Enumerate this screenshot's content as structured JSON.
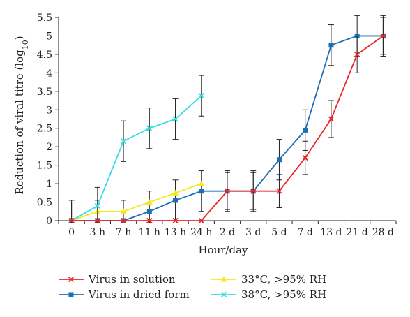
{
  "chart_data": {
    "type": "line",
    "xlabel": "Hour/day",
    "ylabel_main": "Reduction of viral titre (log",
    "ylabel_sub": "10",
    "ylabel_close": ")",
    "categories": [
      "0",
      "3 h",
      "7 h",
      "11 h",
      "13 h",
      "24 h",
      "2 d",
      "3 d",
      "5 d",
      "7 d",
      "13 d",
      "21 d",
      "28 d"
    ],
    "y_ticks": [
      "0",
      "0.5",
      "1",
      "1.5",
      "2",
      "2.5",
      "3",
      "3.5",
      "4",
      "4.5",
      "5",
      "5.5"
    ],
    "ylim": [
      0,
      5.5
    ],
    "grid": false,
    "legend_position": "bottom",
    "series": [
      {
        "name": "Virus in solution",
        "color": "#e8262b",
        "marker": "x",
        "values": [
          0,
          0,
          0,
          0,
          0,
          0,
          0.8,
          0.8,
          0.8,
          1.7,
          2.75,
          4.5,
          5.0
        ],
        "errors": [
          0,
          0,
          0,
          0,
          0,
          0,
          0.5,
          0.5,
          0.45,
          0.45,
          0.5,
          0.5,
          0.5
        ]
      },
      {
        "name": "Virus in dried form",
        "color": "#1c6fb4",
        "marker": "square",
        "values": [
          0,
          0,
          0,
          0.25,
          0.55,
          0.8,
          0.8,
          0.8,
          1.65,
          2.45,
          4.75,
          5.0,
          5.0
        ],
        "errors": [
          0.55,
          0.55,
          0.55,
          0.55,
          0.55,
          0.55,
          0.55,
          0.55,
          0.55,
          0.55,
          0.55,
          0.55,
          0.55
        ]
      },
      {
        "name": "33°C, >95% RH",
        "color": "#f2ea1d",
        "marker": "triangle",
        "values": [
          0,
          0.25,
          0.25,
          0.5,
          0.75,
          1.0,
          null,
          null,
          null,
          null,
          null,
          null,
          null
        ],
        "errors": [
          0,
          0,
          0,
          0,
          0,
          0,
          null,
          null,
          null,
          null,
          null,
          null,
          null
        ]
      },
      {
        "name": "38°C, >95% RH",
        "color": "#37dce3",
        "marker": "x",
        "values": [
          0,
          0.4,
          2.15,
          2.5,
          2.75,
          3.38,
          null,
          null,
          null,
          null,
          null,
          null,
          null
        ],
        "errors": [
          0.5,
          0.5,
          0.55,
          0.55,
          0.55,
          0.55,
          null,
          null,
          null,
          null,
          null,
          null,
          null
        ]
      }
    ]
  }
}
